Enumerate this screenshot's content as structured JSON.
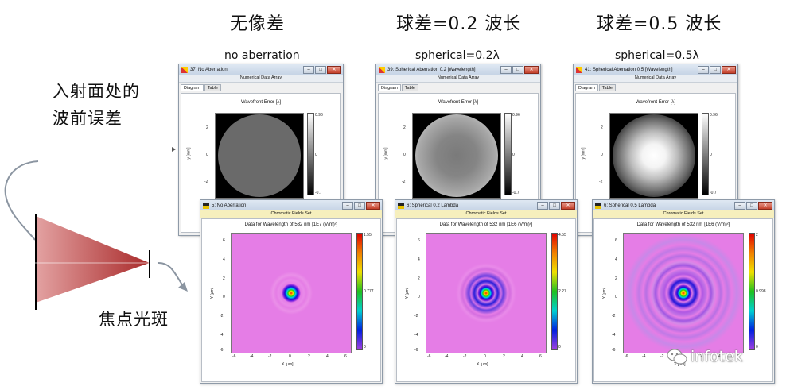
{
  "headings": {
    "cn": [
      "无像差",
      "球差=0.2 波长",
      "球差=0.5 波长"
    ],
    "en": [
      "no aberration",
      "spherical=0.2λ",
      "spherical=0.5λ"
    ]
  },
  "side": {
    "line1": "入射面处的",
    "line2": "波前误差",
    "focus": "焦点光斑"
  },
  "wave_windows": [
    {
      "title": "37: No Aberration",
      "subtitle": "Numerical Data Array",
      "tabs": [
        "Diagram",
        "Table"
      ],
      "plot_title": "Wavefront Error [λ]",
      "ylabel": "y [mm]",
      "yticks": [
        "2",
        "0",
        "-2"
      ],
      "cbar": [
        "0.96",
        "0",
        "-0.7"
      ],
      "pattern": "flat"
    },
    {
      "title": "39: Spherical Aberration 0.2 [Wavelength]",
      "subtitle": "Numerical Data Array",
      "tabs": [
        "Diagram",
        "Table"
      ],
      "plot_title": "Wavefront Error [λ]",
      "ylabel": "y [mm]",
      "yticks": [
        "2",
        "0",
        "-2"
      ],
      "cbar": [
        "0.96",
        "0",
        "-0.7"
      ],
      "pattern": "soft"
    },
    {
      "title": "41: Spherical Aberration 0.5 [Wavelength]",
      "subtitle": "Numerical Data Array",
      "tabs": [
        "Diagram",
        "Table"
      ],
      "plot_title": "Wavefront Error [λ]",
      "ylabel": "y [mm]",
      "yticks": [
        "2",
        "0",
        "-2"
      ],
      "cbar": [
        "0.96",
        "0",
        "-0.7"
      ],
      "pattern": "strong"
    }
  ],
  "field_windows": [
    {
      "title": "5: No Aberration",
      "subtitle": "Chromatic Fields Set",
      "plot_title": "Data for Wavelength of 532 nm  [1E7 (V/m)²]",
      "xlabel": "X [µm]",
      "ylabel": "Y [µm]",
      "ticks": [
        "-6",
        "-4",
        "-2",
        "0",
        "2",
        "4",
        "6"
      ],
      "cbar": [
        "1.55",
        "0.777",
        "0"
      ]
    },
    {
      "title": "6: Spherical 0.2 Lambda",
      "subtitle": "Chromatic Fields Set",
      "plot_title": "Data for Wavelength of 532 nm  [1E6 (V/m)²]",
      "xlabel": "X [µm]",
      "ylabel": "Y [µm]",
      "ticks": [
        "-6",
        "-4",
        "-2",
        "0",
        "2",
        "4",
        "6"
      ],
      "cbar": [
        "4.55",
        "2.27",
        "0"
      ]
    },
    {
      "title": "6: Spherical 0.5 Lambda",
      "subtitle": "Chromatic Fields Set",
      "plot_title": "Data for Wavelength of 532 nm  [1E6 (V/m)²]",
      "xlabel": "X [µm]",
      "ylabel": "Y [µm]",
      "ticks": [
        "-6",
        "-4",
        "-2",
        "0",
        "2",
        "4",
        "6"
      ],
      "cbar": [
        "2",
        "0.998",
        "0"
      ]
    }
  ],
  "watermark": "infotek",
  "colors": {
    "titlebar": "#c6d4e6",
    "field_bg": "#e57de6",
    "cone": "#b43c3c"
  }
}
